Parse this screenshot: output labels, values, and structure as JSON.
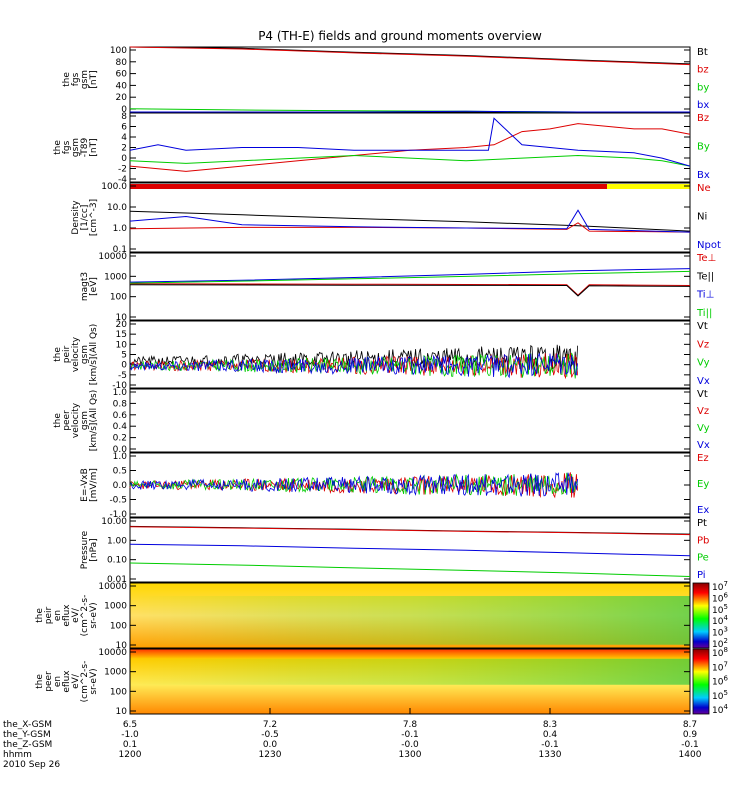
{
  "title": "P4 (TH-E) fields and ground moments overview",
  "colors": {
    "black": "#000000",
    "red": "#dd0000",
    "green": "#00cc00",
    "blue": "#0000dd",
    "yellow": "#ffff00"
  },
  "chart_data": {
    "type": "line",
    "time_range": [
      "1200",
      "1400"
    ],
    "panels": [
      {
        "id": "fgs",
        "ylabel": [
          "the",
          "fgs",
          "gsm",
          "[nT]"
        ],
        "yticks": [
          "100",
          "80",
          "60",
          "40",
          "20",
          "0"
        ],
        "ylim": [
          0,
          100
        ],
        "legend": [
          {
            "text": "Bt",
            "color": "black"
          },
          {
            "text": "bz",
            "color": "red"
          },
          {
            "text": "by",
            "color": "green"
          },
          {
            "text": "bx",
            "color": "blue"
          }
        ],
        "series": [
          {
            "name": "Bt",
            "color": "black",
            "x": [
              0,
              0.2,
              0.4,
              0.6,
              0.8,
              1
            ],
            "y": [
              103,
              98,
              92,
              87,
              80,
              74
            ]
          },
          {
            "name": "bz",
            "color": "red",
            "x": [
              0,
              0.2,
              0.4,
              0.6,
              0.8,
              1
            ],
            "y": [
              103,
              97,
              91,
              86,
              79,
              73
            ]
          },
          {
            "name": "by",
            "color": "green",
            "x": [
              0,
              0.2,
              0.4,
              0.6,
              0.8,
              1
            ],
            "y": [
              5,
              3,
              2,
              1,
              0,
              -1
            ]
          },
          {
            "name": "bx",
            "color": "blue",
            "x": [
              0,
              0.2,
              0.4,
              0.6,
              0.8,
              1
            ],
            "y": [
              0,
              -1,
              0,
              1,
              0,
              0
            ]
          }
        ]
      },
      {
        "id": "fgs_t89",
        "ylabel": [
          "the",
          "fgs",
          "gsm",
          "-T89",
          "[nT]"
        ],
        "yticks": [
          "8",
          "6",
          "4",
          "2",
          "0",
          "-2",
          "-4"
        ],
        "ylim": [
          -5,
          8
        ],
        "legend": [
          {
            "text": "Bz",
            "color": "red"
          },
          {
            "text": "By",
            "color": "green"
          },
          {
            "text": "Bx",
            "color": "blue"
          }
        ],
        "series": [
          {
            "name": "Bz",
            "color": "red",
            "x": [
              0,
              0.05,
              0.1,
              0.15,
              0.2,
              0.3,
              0.4,
              0.5,
              0.6,
              0.65,
              0.7,
              0.75,
              0.8,
              0.85,
              0.9,
              0.95,
              1
            ],
            "y": [
              -2,
              -2.5,
              -3,
              -2.5,
              -2,
              -1,
              0,
              1,
              1.5,
              2,
              4.5,
              5,
              6,
              5.5,
              5,
              5,
              4
            ]
          },
          {
            "name": "By",
            "color": "green",
            "x": [
              0,
              0.1,
              0.2,
              0.3,
              0.4,
              0.5,
              0.6,
              0.7,
              0.8,
              0.9,
              0.95,
              1
            ],
            "y": [
              -1,
              -1.5,
              -1,
              -0.5,
              0,
              -0.5,
              -1,
              -0.5,
              0,
              -0.5,
              -1,
              -2
            ]
          },
          {
            "name": "Bx",
            "color": "blue",
            "x": [
              0,
              0.05,
              0.1,
              0.2,
              0.3,
              0.4,
              0.5,
              0.6,
              0.64,
              0.65,
              0.7,
              0.8,
              0.9,
              0.95,
              1
            ],
            "y": [
              1,
              2,
              1,
              1.5,
              1.5,
              1,
              1,
              1,
              1,
              7,
              2,
              1,
              0.5,
              -0.5,
              -2
            ]
          }
        ]
      },
      {
        "id": "density",
        "ylabel": [
          "Density",
          "[1/cc]",
          "[cm^-3]"
        ],
        "yticks": [
          "100.0",
          "10.0",
          "1.0",
          "0.1"
        ],
        "ylim": [
          0.1,
          200
        ],
        "log": true,
        "legend": [
          {
            "text": "Ne",
            "color": "red"
          },
          {
            "text": "Ni",
            "color": "black"
          },
          {
            "text": "Npot",
            "color": "blue"
          }
        ],
        "series": [
          {
            "name": "Ni",
            "color": "black",
            "x": [
              0,
              0.2,
              0.4,
              0.6,
              0.8,
              1
            ],
            "y": [
              9,
              6,
              4,
              2.8,
              1.8,
              1.0
            ]
          },
          {
            "name": "Ne",
            "color": "red",
            "x": [
              0,
              0.2,
              0.4,
              0.6,
              0.78,
              0.8,
              0.82,
              1
            ],
            "y": [
              1.3,
              1.5,
              1.5,
              1.4,
              1.2,
              2.5,
              1.0,
              0.9
            ]
          },
          {
            "name": "Npot",
            "color": "blue",
            "x": [
              0,
              0.1,
              0.2,
              0.3,
              0.4,
              0.6,
              0.78,
              0.8,
              0.82,
              1
            ],
            "y": [
              3,
              5,
              2,
              1.8,
              1.6,
              1.4,
              1.3,
              10,
              1.2,
              0.9
            ]
          }
        ]
      },
      {
        "id": "temperature",
        "ylabel": [
          "magt3",
          "[eV]"
        ],
        "yticks": [
          "10000",
          "1000",
          "100",
          "10"
        ],
        "ylim": [
          10,
          10000
        ],
        "log": true,
        "legend": [
          {
            "text": "Te⊥",
            "color": "red"
          },
          {
            "text": "Te||",
            "color": "black"
          },
          {
            "text": "Ti⊥",
            "color": "blue"
          },
          {
            "text": "Ti||",
            "color": "green"
          }
        ],
        "series": [
          {
            "name": "Te⊥",
            "color": "red",
            "x": [
              0,
              0.4,
              0.78,
              0.8,
              0.82,
              1
            ],
            "y": [
              420,
              400,
              380,
              130,
              380,
              350
            ]
          },
          {
            "name": "Te||",
            "color": "black",
            "x": [
              0,
              0.4,
              0.78,
              0.8,
              0.82,
              1
            ],
            "y": [
              380,
              360,
              350,
              120,
              340,
              320
            ]
          },
          {
            "name": "Ti⊥",
            "color": "blue",
            "x": [
              0,
              0.2,
              0.4,
              0.6,
              0.8,
              1
            ],
            "y": [
              500,
              600,
              800,
              1100,
              1600,
              2000
            ]
          },
          {
            "name": "Ti||",
            "color": "green",
            "x": [
              0,
              0.2,
              0.4,
              0.6,
              0.8,
              1
            ],
            "y": [
              450,
              550,
              700,
              900,
              1200,
              1500
            ]
          }
        ]
      },
      {
        "id": "peir_velocity",
        "ylabel": [
          "the",
          "peir",
          "velocity",
          "gsm",
          "[km/s](All Qs)"
        ],
        "yticks": [
          "20",
          "15",
          "10",
          "5",
          "0",
          "-5",
          "-10"
        ],
        "ylim": [
          -10,
          20
        ],
        "legend": [
          {
            "text": "Vt",
            "color": "black"
          },
          {
            "text": "Vz",
            "color": "red"
          },
          {
            "text": "Vy",
            "color": "green"
          },
          {
            "text": "Vx",
            "color": "blue"
          }
        ],
        "series": [
          {
            "name": "Vt",
            "color": "black",
            "x": [
              0,
              0.8
            ],
            "y": [
              2,
              4
            ]
          },
          {
            "name": "Vz",
            "color": "red",
            "x": [
              0,
              0.8
            ],
            "y": [
              0,
              0
            ]
          },
          {
            "name": "Vy",
            "color": "green",
            "x": [
              0,
              0.8
            ],
            "y": [
              0,
              0
            ]
          },
          {
            "name": "Vx",
            "color": "blue",
            "x": [
              0,
              0.8
            ],
            "y": [
              0,
              0
            ]
          }
        ]
      },
      {
        "id": "peer_velocity",
        "ylabel": [
          "the",
          "peer",
          "velocity",
          "gsm",
          "[km/s](All Qs)"
        ],
        "yticks": [
          "1.0",
          "0.8",
          "0.6",
          "0.4",
          "0.2",
          "0.0"
        ],
        "ylim": [
          0,
          1
        ],
        "legend": [
          {
            "text": "Vt",
            "color": "black"
          },
          {
            "text": "Vz",
            "color": "red"
          },
          {
            "text": "Vy",
            "color": "green"
          },
          {
            "text": "Vx",
            "color": "blue"
          }
        ],
        "series": []
      },
      {
        "id": "efield",
        "ylabel": [
          "E=-VxB",
          "[mV/m]"
        ],
        "yticks": [
          "1.0",
          "0.5",
          "0.0",
          "-0.5",
          "-1.0"
        ],
        "ylim": [
          -1.2,
          1.2
        ],
        "legend": [
          {
            "text": "Ez",
            "color": "red"
          },
          {
            "text": "Ey",
            "color": "green"
          },
          {
            "text": "Ex",
            "color": "blue"
          }
        ],
        "series": [
          {
            "name": "Ez",
            "color": "red",
            "x": [
              0,
              0.8
            ],
            "y": [
              0,
              0
            ]
          },
          {
            "name": "Ey",
            "color": "green",
            "x": [
              0,
              0.8
            ],
            "y": [
              0,
              0
            ]
          },
          {
            "name": "Ex",
            "color": "blue",
            "x": [
              0,
              0.8
            ],
            "y": [
              0,
              0
            ]
          }
        ]
      },
      {
        "id": "pressure",
        "ylabel": [
          "Pressure",
          "[nPa]"
        ],
        "yticks": [
          "10.00",
          "1.00",
          "0.10",
          "0.01"
        ],
        "ylim": [
          0.008,
          12
        ],
        "log": true,
        "legend": [
          {
            "text": "Pt",
            "color": "black"
          },
          {
            "text": "Pb",
            "color": "red"
          },
          {
            "text": "Pe",
            "color": "green"
          },
          {
            "text": "Pi",
            "color": "blue"
          }
        ],
        "series": [
          {
            "name": "Pt",
            "color": "black",
            "x": [
              0,
              0.2,
              0.4,
              0.6,
              0.8,
              1
            ],
            "y": [
              4.6,
              3.9,
              3.3,
              2.7,
              2.3,
              1.9
            ]
          },
          {
            "name": "Pb",
            "color": "red",
            "x": [
              0,
              0.2,
              0.4,
              0.6,
              0.8,
              1
            ],
            "y": [
              4.4,
              3.8,
              3.2,
              2.6,
              2.2,
              1.8
            ]
          },
          {
            "name": "Pi",
            "color": "blue",
            "x": [
              0,
              0.2,
              0.4,
              0.6,
              0.8,
              1
            ],
            "y": [
              0.6,
              0.5,
              0.38,
              0.3,
              0.22,
              0.16
            ]
          },
          {
            "name": "Pe",
            "color": "green",
            "x": [
              0,
              0.2,
              0.4,
              0.6,
              0.8,
              1
            ],
            "y": [
              0.07,
              0.055,
              0.04,
              0.03,
              0.022,
              0.015
            ]
          }
        ]
      },
      {
        "id": "peir_spec",
        "ylabel": [
          "the",
          "peir",
          "en",
          "eflux",
          "eV/",
          "(cm^2-s-",
          "sr-eV)"
        ],
        "yticks": [
          "10000",
          "1000",
          "100",
          "10"
        ],
        "spectrogram": true,
        "colorbar": [
          "10^7",
          "10^6",
          "10^5",
          "10^4",
          "10^3",
          "10^2"
        ]
      },
      {
        "id": "peer_spec",
        "ylabel": [
          "the",
          "peer",
          "en",
          "eflux",
          "eV/",
          "(cm^2-s-",
          "sr-eV)"
        ],
        "yticks": [
          "10000",
          "1000",
          "100",
          "10"
        ],
        "spectrogram": true,
        "colorbar": [
          "10^8",
          "10^7",
          "10^6",
          "10^5",
          "10^4"
        ]
      }
    ],
    "x_axis": {
      "rows": [
        {
          "label": "the_X-GSM",
          "values": [
            "6.5",
            "7.2",
            "7.8",
            "8.3",
            "8.7"
          ]
        },
        {
          "label": "the_Y-GSM",
          "values": [
            "-1.0",
            "-0.5",
            "-0.1",
            "0.4",
            "0.9"
          ]
        },
        {
          "label": "the_Z-GSM",
          "values": [
            "0.1",
            "0.0",
            "-0.0",
            "-0.1",
            "-0.1"
          ]
        },
        {
          "label": "hhmm",
          "values": [
            "1200",
            "1230",
            "1300",
            "1330",
            "1400"
          ]
        }
      ],
      "date": "2010 Sep 26"
    }
  }
}
